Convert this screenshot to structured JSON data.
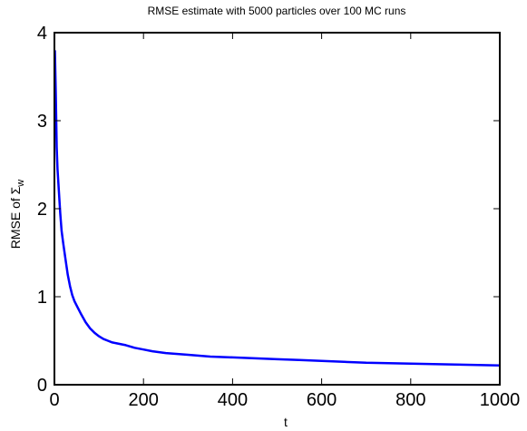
{
  "chart_data": {
    "type": "line",
    "title": "RMSE estimate with 5000 particles over 100 MC runs",
    "xlabel": "t",
    "ylabel": {
      "prefix": "RMSE of ",
      "symbol": "Σ",
      "subscript": "w"
    },
    "xlim": [
      0,
      1000
    ],
    "ylim": [
      0,
      4
    ],
    "xticks": [
      0,
      200,
      400,
      600,
      800,
      1000
    ],
    "yticks": [
      0,
      1,
      2,
      3,
      4
    ],
    "grid": false,
    "line_color": "#0000ff",
    "series": [
      {
        "x": [
          1,
          3,
          5,
          7,
          10,
          13,
          16,
          20,
          25,
          30,
          35,
          40,
          45,
          50,
          60,
          70,
          80,
          90,
          100,
          110,
          120,
          130,
          140,
          150,
          160,
          180,
          200,
          220,
          250,
          300,
          350,
          400,
          450,
          500,
          550,
          600,
          650,
          700,
          750,
          800,
          850,
          900,
          950,
          1000
        ],
        "y": [
          3.8,
          3.3,
          2.7,
          2.45,
          2.2,
          1.95,
          1.75,
          1.6,
          1.42,
          1.25,
          1.12,
          1.02,
          0.95,
          0.9,
          0.8,
          0.71,
          0.64,
          0.59,
          0.55,
          0.52,
          0.5,
          0.48,
          0.47,
          0.46,
          0.45,
          0.42,
          0.4,
          0.38,
          0.36,
          0.34,
          0.32,
          0.31,
          0.3,
          0.29,
          0.28,
          0.27,
          0.26,
          0.25,
          0.245,
          0.24,
          0.235,
          0.23,
          0.225,
          0.22
        ]
      }
    ]
  }
}
